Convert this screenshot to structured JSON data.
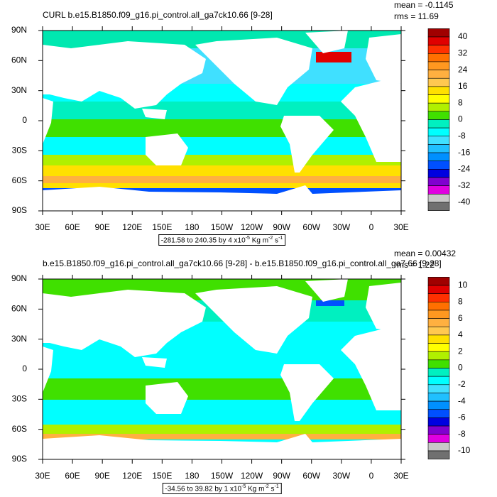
{
  "panels": [
    {
      "title": "CURL b.e15.B1850.f09_g16.pi_control.all_ga7ck10.66 [9-28]",
      "mean": "mean = -0.1145",
      "rms": "rms = 11.69",
      "lat_labels": [
        "90N",
        "60N",
        "30N",
        "0",
        "30S",
        "60S",
        "90S"
      ],
      "lon_labels": [
        "30E",
        "60E",
        "90E",
        "120E",
        "150E",
        "180",
        "150W",
        "120W",
        "90W",
        "60W",
        "30W",
        "0",
        "30E"
      ],
      "colorbar": {
        "labels": [
          40,
          32,
          24,
          16,
          8,
          0,
          -8,
          -16,
          -24,
          -32,
          -40
        ],
        "colors": [
          "#a00000",
          "#e00000",
          "#ff3000",
          "#ff7000",
          "#ff9820",
          "#ffb040",
          "#ffc850",
          "#ffe000",
          "#ffff00",
          "#b0f000",
          "#40e000",
          "#00f0c0",
          "#00ffff",
          "#40e0ff",
          "#20c0ff",
          "#0090ff",
          "#0050ff",
          "#0000e0",
          "#8000d0",
          "#e000e0",
          "#c8c8c8",
          "#707070"
        ]
      },
      "range_note": {
        "text": "-281.58 to 240.35 by 4 x10",
        "exp1": "-5",
        "unit1": " Kg m",
        "exp2": "-2",
        "unit2": " s",
        "exp3": "-1"
      }
    },
    {
      "title": "b.e15.B1850.f09_g16.pi_control.all_ga7ck10.66 [9-28] - b.e15.B1850.f09_g16.pi_control.all_ga7.66 [9-28]",
      "mean": "mean = 0.00432",
      "rms": "rms = 1.22",
      "lat_labels": [
        "90N",
        "60N",
        "30N",
        "0",
        "30S",
        "60S",
        "90S"
      ],
      "lon_labels": [
        "30E",
        "60E",
        "90E",
        "120E",
        "150E",
        "180",
        "150W",
        "120W",
        "90W",
        "60W",
        "30W",
        "0",
        "30E"
      ],
      "colorbar": {
        "labels": [
          10,
          8,
          6,
          4,
          2,
          0,
          -2,
          -4,
          -6,
          -8,
          -10
        ],
        "colors": [
          "#a00000",
          "#e00000",
          "#ff3000",
          "#ff7000",
          "#ff9820",
          "#ffb040",
          "#ffc850",
          "#ffe000",
          "#ffff00",
          "#b0f000",
          "#40e000",
          "#00f0c0",
          "#00ffff",
          "#40e0ff",
          "#20c0ff",
          "#0090ff",
          "#0050ff",
          "#0000e0",
          "#8000d0",
          "#e000e0",
          "#c8c8c8",
          "#707070"
        ]
      },
      "range_note": {
        "text": "-34.56 to 39.82 by 1 x10",
        "exp1": "-5",
        "unit1": " Kg m",
        "exp2": "-2",
        "unit2": " s",
        "exp3": "-1"
      }
    }
  ]
}
